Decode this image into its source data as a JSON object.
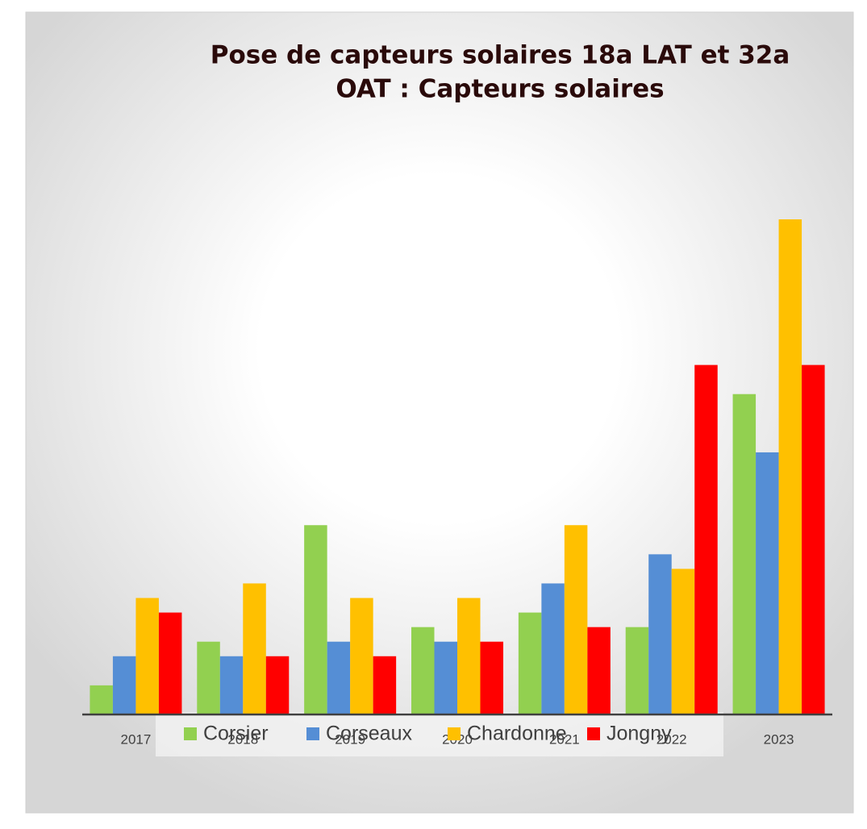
{
  "chart_data": {
    "type": "bar",
    "title": [
      "Pose de capteurs solaires 18a LAT et 32a",
      "OAT : Capteurs solaires"
    ],
    "categories": [
      "2017",
      "2018",
      "2019",
      "2020",
      "2021",
      "2022",
      "2023"
    ],
    "series": [
      {
        "name": "Corsier",
        "color": "#92d050",
        "values": [
          2,
          5,
          13,
          6,
          7,
          6,
          22
        ]
      },
      {
        "name": "Corseaux",
        "color": "#558ed5",
        "values": [
          4,
          4,
          5,
          5,
          9,
          11,
          18
        ]
      },
      {
        "name": "Chardonne",
        "color": "#ffc000",
        "values": [
          8,
          9,
          8,
          8,
          13,
          10,
          34
        ]
      },
      {
        "name": "Jongny",
        "color": "#ff0000",
        "values": [
          7,
          4,
          4,
          5,
          6,
          24,
          24
        ]
      }
    ],
    "legend": "bottom"
  }
}
